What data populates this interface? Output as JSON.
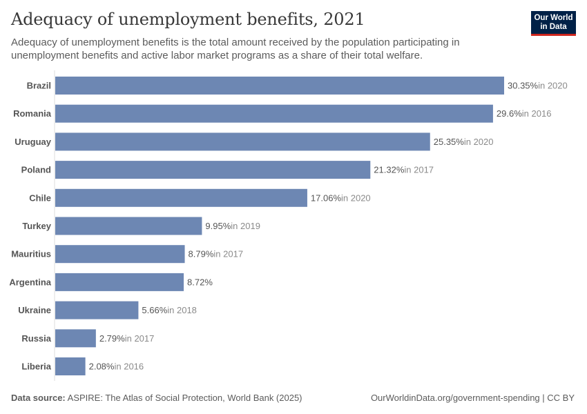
{
  "header": {
    "title": "Adequacy of unemployment benefits, 2021",
    "subtitle": "Adequacy of unemployment benefits is the total amount received by the population participating in unemployment benefits and active labor market programs as a share of their total welfare."
  },
  "logo": {
    "line1": "Our World",
    "line2": "in Data",
    "bg_color": "#002147",
    "accent_color": "#ce261e"
  },
  "footer": {
    "source_label": "Data source:",
    "source_text": "ASPIRE: The Atlas of Social Protection, World Bank (2025)",
    "url_text": "OurWorldinData.org/government-spending | CC BY"
  },
  "chart_data": {
    "type": "bar",
    "orientation": "horizontal",
    "bar_color": "#6d87b3",
    "value_suffix": "%",
    "xlim": [
      0,
      30.35
    ],
    "categories": [
      "Brazil",
      "Romania",
      "Uruguay",
      "Poland",
      "Chile",
      "Turkey",
      "Mauritius",
      "Argentina",
      "Ukraine",
      "Russia",
      "Liberia"
    ],
    "values": [
      30.35,
      29.6,
      25.35,
      21.32,
      17.06,
      9.95,
      8.79,
      8.72,
      5.66,
      2.79,
      2.08
    ],
    "value_labels": [
      "30.35%",
      "29.6%",
      "25.35%",
      "21.32%",
      "17.06%",
      "9.95%",
      "8.79%",
      "8.72%",
      "5.66%",
      "2.79%",
      "2.08%"
    ],
    "year_notes": [
      "in 2020",
      "in 2016",
      "in 2020",
      "in 2017",
      "in 2020",
      "in 2019",
      "in 2017",
      "",
      "in 2018",
      "in 2017",
      "in 2016"
    ]
  }
}
